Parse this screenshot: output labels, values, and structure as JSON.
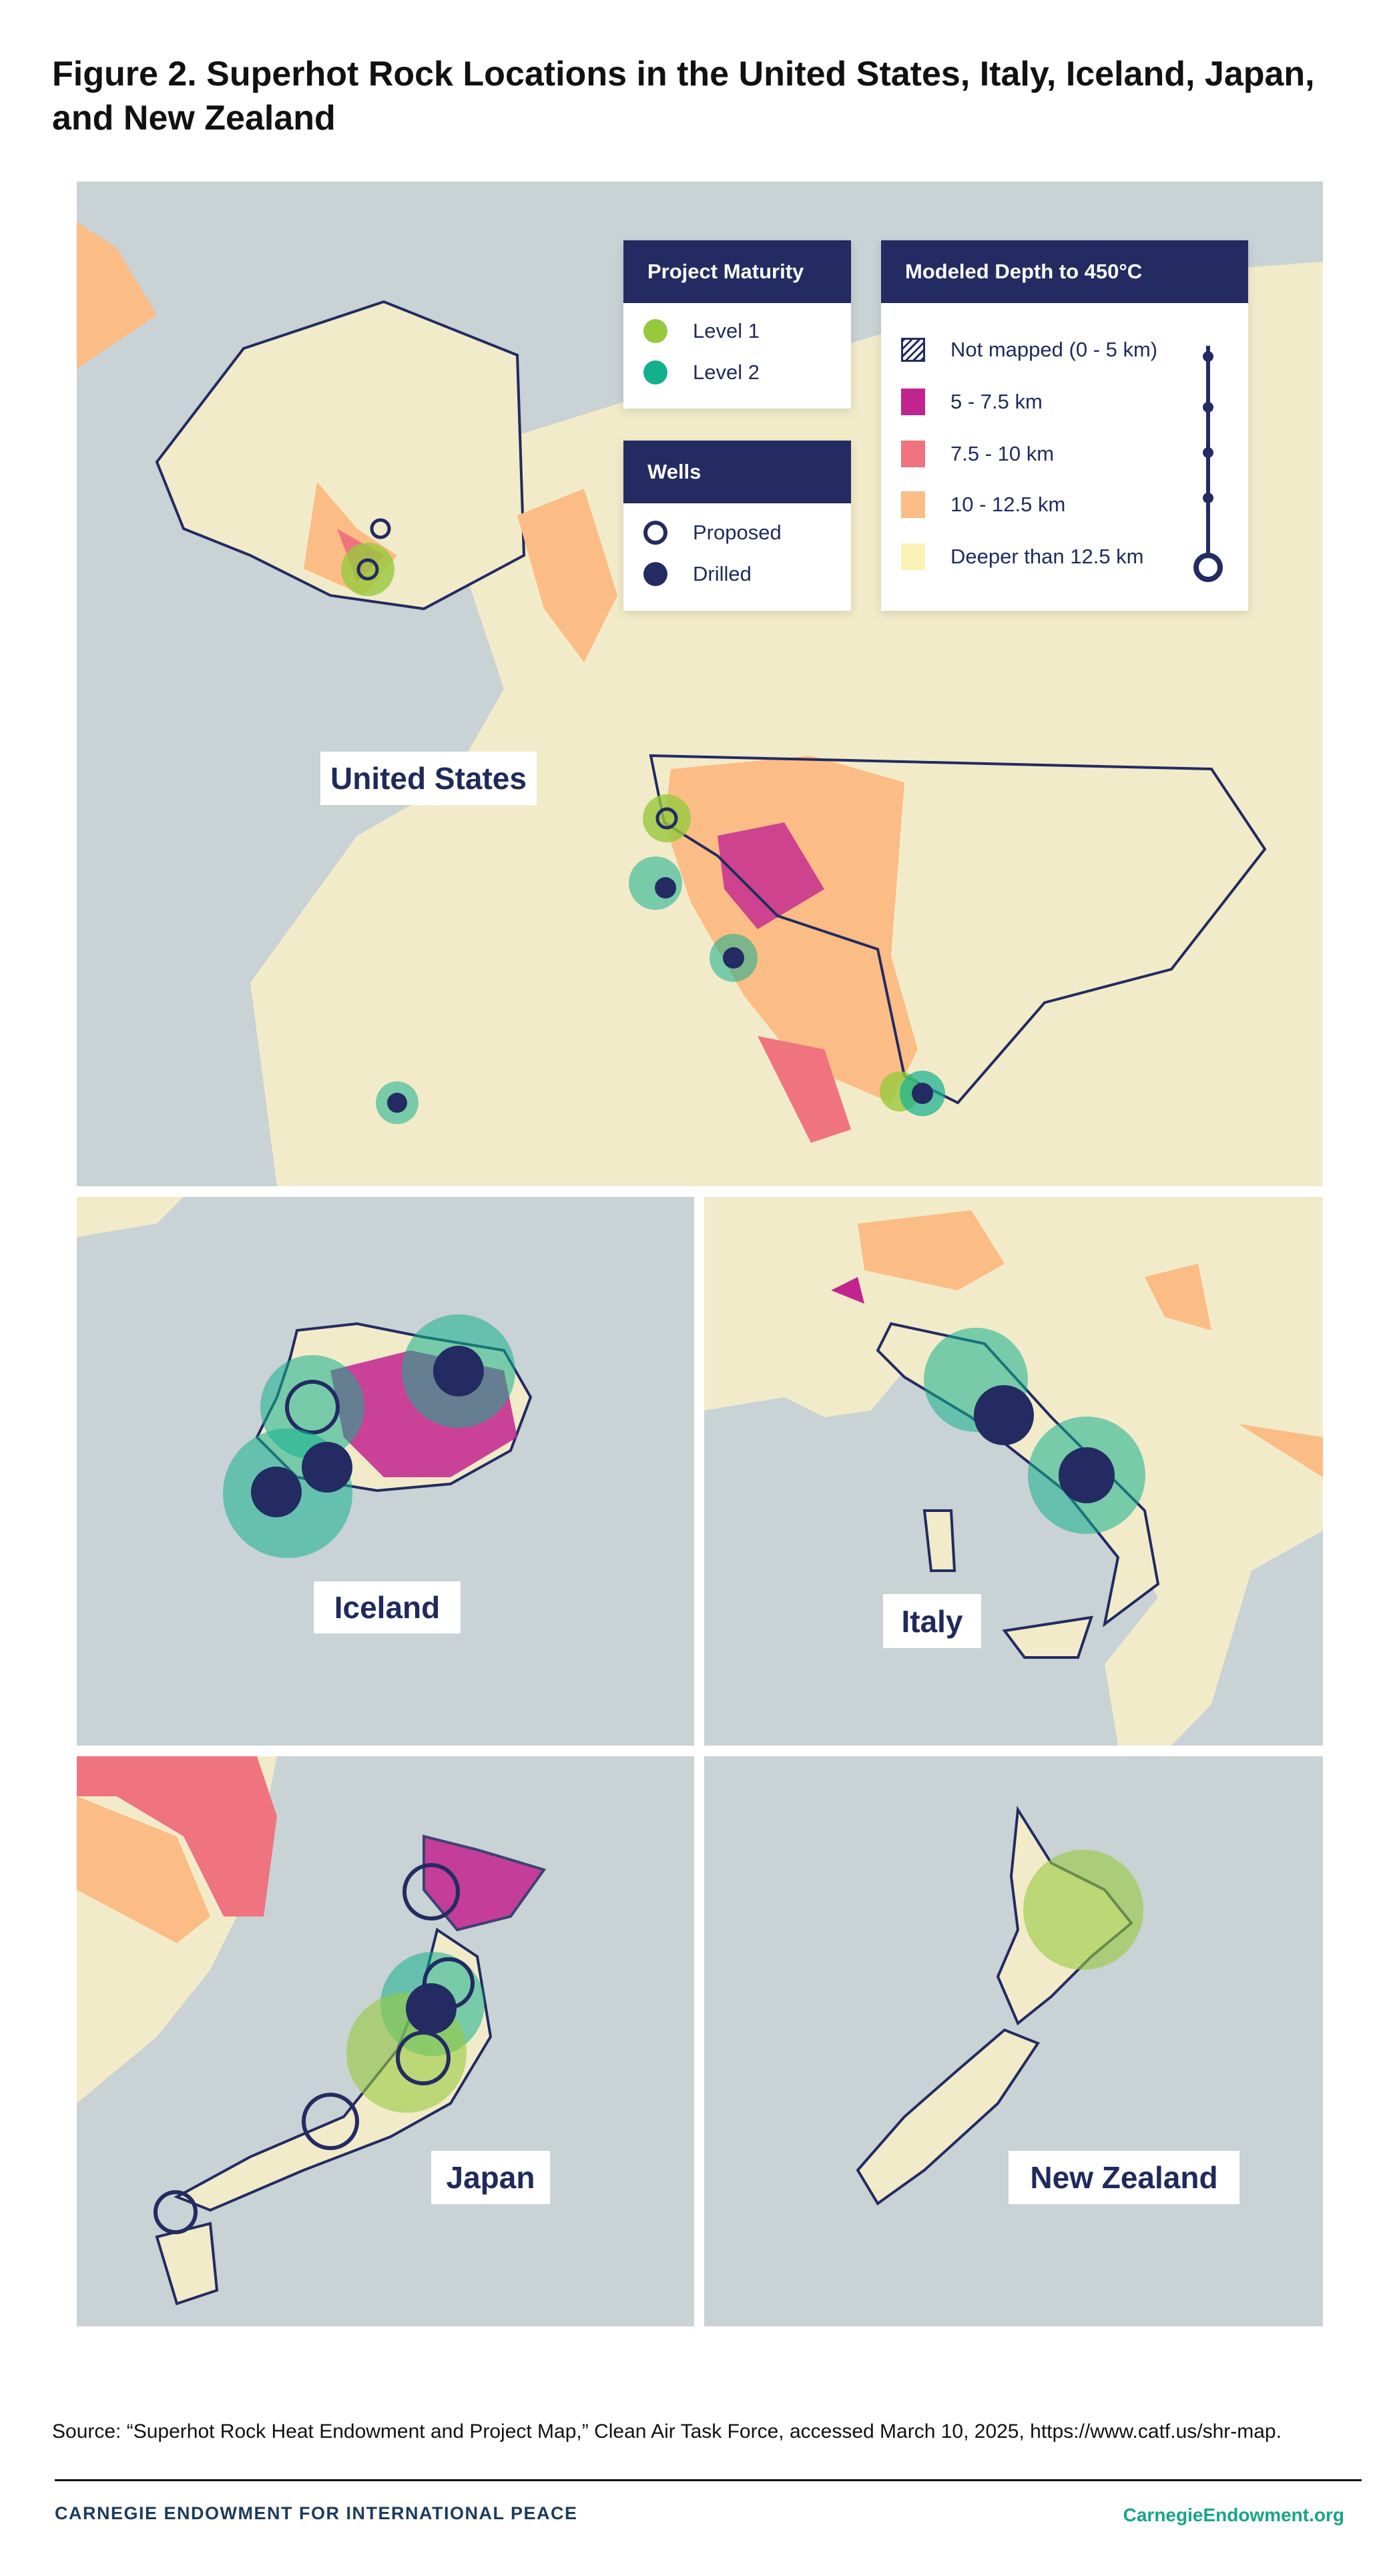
{
  "title": "Figure 2. Superhot Rock Locations in the United States, Italy, Iceland, Japan, and New Zealand",
  "maps": {
    "us": "United States",
    "iceland": "Iceland",
    "italy": "Italy",
    "japan": "Japan",
    "new_zealand": "New Zealand"
  },
  "legend": {
    "maturity": {
      "title": "Project Maturity",
      "items": [
        {
          "label": "Level 1",
          "color": "#97c93d"
        },
        {
          "label": "Level 2",
          "color": "#13b08e"
        }
      ]
    },
    "wells": {
      "title": "Wells",
      "items": [
        {
          "label": "Proposed"
        },
        {
          "label": "Drilled"
        }
      ]
    },
    "depth": {
      "title": "Modeled Depth to 450°C",
      "items": [
        {
          "label": "Not mapped (0 - 5 km)",
          "color": "hatch"
        },
        {
          "label": "5 - 7.5 km",
          "color": "#c2248f"
        },
        {
          "label": "7.5 - 10 km",
          "color": "#f07380"
        },
        {
          "label": "10 - 12.5 km",
          "color": "#fbbd85"
        },
        {
          "label": "Deeper than 12.5 km",
          "color": "#fbf3b5"
        }
      ]
    }
  },
  "colors": {
    "navy": "#232b62",
    "ocean": "#c9d2d4",
    "land": "#f2ebc9"
  },
  "source": "Source: “Superhot Rock Heat Endowment and Project Map,” Clean Air Task Force, accessed March 10, 2025, https://www.catf.us/shr-map.",
  "footer": {
    "brand": "CARNEGIE ENDOWMENT FOR INTERNATIONAL PEACE",
    "site": "CarnegieEndowment.org"
  }
}
